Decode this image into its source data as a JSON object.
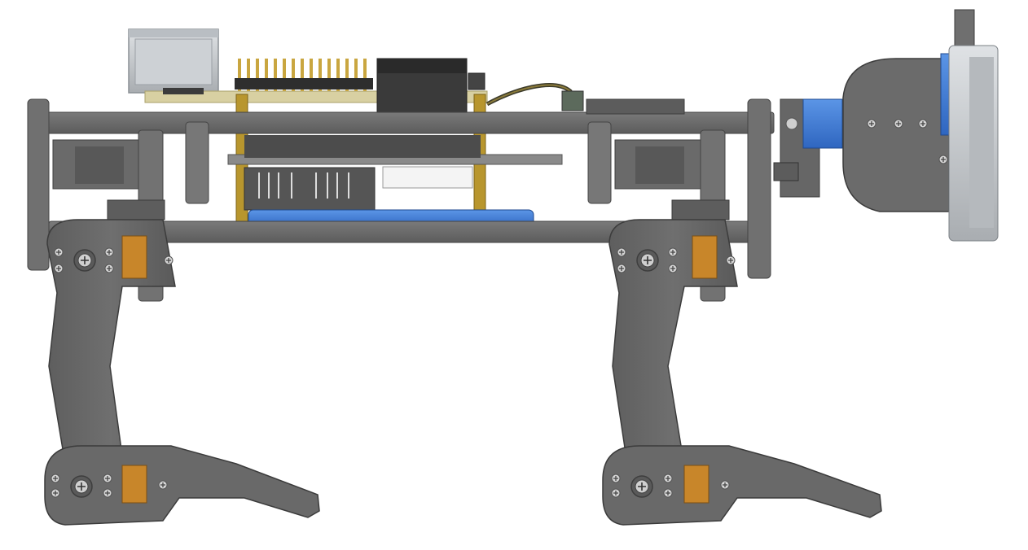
{
  "scene": {
    "background": "#ffffff",
    "colors": {
      "frame": "#6b6b6b",
      "frame_dark": "#4f4f4f",
      "frame_light": "#8a8a8a",
      "leg": "#666666",
      "servo_label": "#c8862a",
      "screw": "#d8d8d8",
      "pcb": "#d6cfa8",
      "brass": "#b8962e",
      "pins": "#c9a640",
      "battery_blue": "#3f7fd6",
      "sensor_blue": "#2f5fb8",
      "connector_metal": "#c4c8cc",
      "white_block": "#f2f2f2"
    },
    "icons": [
      "robot-body-frame",
      "servo-horn-icon",
      "screw-icon",
      "foot-icon",
      "head-sensor-icon"
    ]
  }
}
